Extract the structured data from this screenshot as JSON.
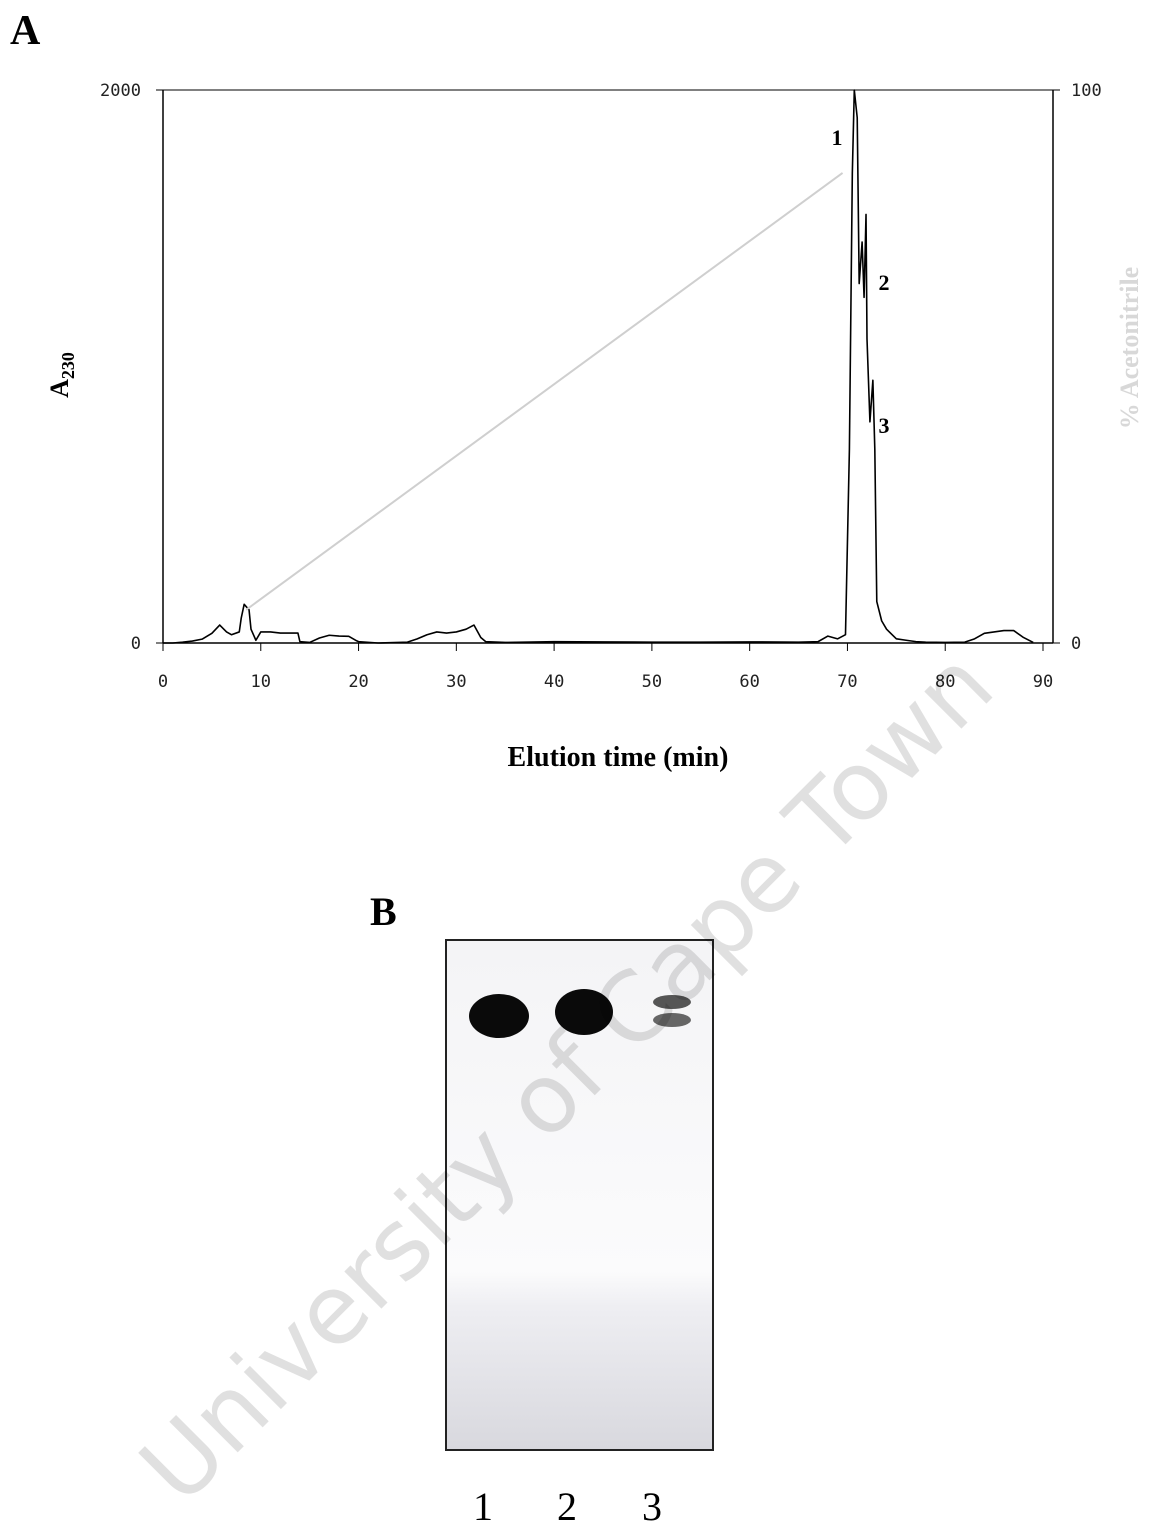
{
  "panel_a_label": "A",
  "chart_data": {
    "type": "line",
    "xlabel": "Elution time (min)",
    "ylabel": {
      "text": "A",
      "subscript": "230"
    },
    "y2label": "% Acetonitrile",
    "xlim": [
      0,
      90
    ],
    "xticks": [
      0,
      10,
      20,
      30,
      40,
      50,
      60,
      70,
      80,
      90
    ],
    "ylim": [
      0,
      2000
    ],
    "yticks": [
      0,
      2000
    ],
    "y2lim": [
      0,
      100
    ],
    "y2ticks": [
      0,
      100
    ],
    "annotations": [
      "1",
      "2",
      "3"
    ],
    "series": [
      {
        "color": "#000000",
        "x": [
          0,
          1,
          2,
          3,
          4,
          5,
          5.8,
          6.5,
          7,
          7.8,
          8,
          8.3,
          8.8,
          9,
          9.5,
          10,
          11,
          12,
          13,
          13.8,
          14,
          15,
          16,
          17,
          18,
          19,
          19.8,
          20,
          22,
          25,
          26,
          27,
          28,
          29,
          30,
          31,
          31.8,
          32.5,
          33,
          35,
          40,
          45,
          50,
          55,
          60,
          65,
          67,
          68,
          69,
          69.8,
          70.2,
          70.5,
          70.7,
          71,
          71.2,
          71.5,
          71.7,
          71.9,
          72,
          72.3,
          72.6,
          72.8,
          73,
          73.5,
          74,
          75,
          76,
          77,
          78,
          80,
          82,
          83,
          84,
          86,
          87,
          88,
          89
        ],
        "values": [
          0,
          0,
          3,
          7,
          14,
          35,
          65,
          40,
          30,
          40,
          90,
          140,
          120,
          50,
          10,
          40,
          40,
          36,
          36,
          36,
          5,
          2,
          18,
          28,
          25,
          24,
          8,
          5,
          0,
          3,
          15,
          30,
          40,
          36,
          40,
          50,
          65,
          20,
          5,
          2,
          5,
          4,
          3,
          3,
          4,
          3,
          5,
          25,
          15,
          30,
          700,
          1700,
          2000,
          1900,
          1300,
          1450,
          1250,
          1550,
          1100,
          800,
          950,
          700,
          150,
          80,
          50,
          15,
          10,
          5,
          3,
          2,
          3,
          15,
          35,
          45,
          45,
          20,
          2
        ]
      },
      {
        "color": "#cfcfcf",
        "axis": "y2",
        "x": [
          8.5,
          69.5
        ],
        "values": [
          6,
          85
        ]
      }
    ]
  },
  "panel_b": {
    "label": "B",
    "lanes": [
      "1",
      "2",
      "3"
    ]
  },
  "watermark": "University of Cape Town"
}
